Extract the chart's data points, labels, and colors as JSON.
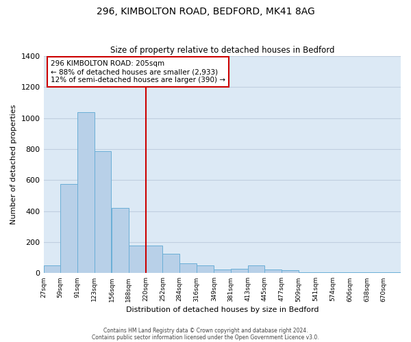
{
  "title": "296, KIMBOLTON ROAD, BEDFORD, MK41 8AG",
  "subtitle": "Size of property relative to detached houses in Bedford",
  "xlabel": "Distribution of detached houses by size in Bedford",
  "ylabel": "Number of detached properties",
  "bar_color": "#b8d0e8",
  "bar_edge_color": "#6aaed6",
  "background_color": "#dce9f5",
  "grid_color": "#c0cfe0",
  "annotation_box_color": "#cc0000",
  "vline_color": "#cc0000",
  "annotation_title": "296 KIMBOLTON ROAD: 205sqm",
  "annotation_line1": "← 88% of detached houses are smaller (2,933)",
  "annotation_line2": "12% of semi-detached houses are larger (390) →",
  "categories": [
    "27sqm",
    "59sqm",
    "91sqm",
    "123sqm",
    "156sqm",
    "188sqm",
    "220sqm",
    "252sqm",
    "284sqm",
    "316sqm",
    "349sqm",
    "381sqm",
    "413sqm",
    "445sqm",
    "477sqm",
    "509sqm",
    "541sqm",
    "574sqm",
    "606sqm",
    "638sqm",
    "670sqm"
  ],
  "bin_edges": [
    27,
    59,
    91,
    123,
    156,
    188,
    220,
    252,
    284,
    316,
    349,
    381,
    413,
    445,
    477,
    509,
    541,
    574,
    606,
    638,
    670
  ],
  "bin_width": 32,
  "values": [
    50,
    575,
    1040,
    785,
    420,
    180,
    180,
    125,
    62,
    50,
    25,
    30,
    50,
    25,
    20,
    8,
    5,
    5,
    5,
    5,
    5
  ],
  "vline_x": 220,
  "ylim": [
    0,
    1400
  ],
  "yticks": [
    0,
    200,
    400,
    600,
    800,
    1000,
    1200,
    1400
  ],
  "footer1": "Contains HM Land Registry data © Crown copyright and database right 2024.",
  "footer2": "Contains public sector information licensed under the Open Government Licence v3.0."
}
